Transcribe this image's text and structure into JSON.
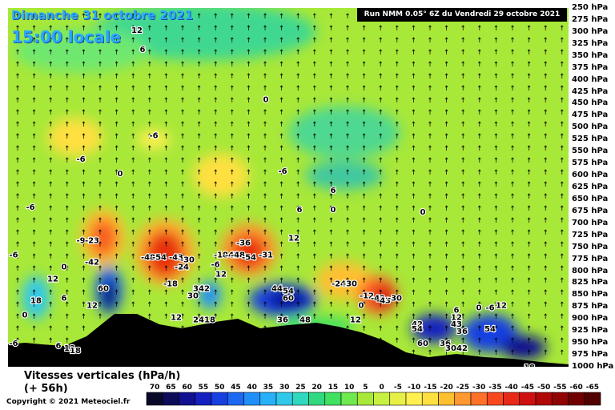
{
  "header": {
    "date": "Dimanche 31 octobre 2021",
    "local_time": "15:00 locale",
    "run_info": "Run NMM 0.05° 6Z du Vendredi 29 octobre 2021"
  },
  "footer": {
    "variable": "Vitesses verticales (hPa/h)",
    "lead": "(+ 56h)",
    "copyright": "Copyright © 2021 Meteociel.fr"
  },
  "colors": {
    "ascent_strong": "#e83010",
    "ascent_mild": "#fff050",
    "neutral": "#a8e838",
    "descent_mild": "#30d880",
    "descent_strong": "#1020c0",
    "terrain": "#000000"
  },
  "chart_data": {
    "type": "heatmap",
    "title": "Vitesses verticales (hPa/h)",
    "y_axis": {
      "quantity": "pressure level",
      "unit": "hPa",
      "ticks": [
        250,
        275,
        300,
        325,
        350,
        375,
        400,
        425,
        450,
        475,
        500,
        525,
        550,
        575,
        600,
        625,
        650,
        675,
        700,
        725,
        750,
        775,
        800,
        825,
        850,
        875,
        900,
        925,
        950,
        975,
        1000
      ],
      "tick_labels": [
        "250 hPa",
        "275 hPa",
        "300 hPa",
        "325 hPa",
        "350 hPa",
        "375 hPa",
        "400 hPa",
        "425 hPa",
        "450 hPa",
        "475 hPa",
        "500 hPa",
        "525 hPa",
        "550 hPa",
        "575 hPa",
        "600 hPa",
        "625 hPa",
        "650 hPa",
        "675 hPa",
        "700 hPa",
        "725 hPa",
        "750 hPa",
        "775 hPa",
        "800 hPa",
        "825 hPa",
        "850 hPa",
        "875 hPa",
        "900 hPa",
        "925 hPa",
        "950 hPa",
        "975 hPa",
        "1000 hPa"
      ],
      "range": [
        250,
        1000
      ]
    },
    "colorbar": {
      "values": [
        70,
        65,
        60,
        55,
        50,
        45,
        40,
        35,
        30,
        25,
        20,
        15,
        10,
        5,
        0,
        -5,
        -10,
        -15,
        -20,
        -25,
        -30,
        -35,
        -40,
        -45,
        -50,
        -55,
        -60,
        -65
      ],
      "colors": [
        "#08082a",
        "#0c0c58",
        "#101090",
        "#1420c0",
        "#1840e0",
        "#1c68f0",
        "#2090f8",
        "#28b0f8",
        "#30c8e8",
        "#30d8c0",
        "#30d880",
        "#40e060",
        "#70e850",
        "#a8e838",
        "#c8f040",
        "#e8f048",
        "#fff050",
        "#ffe040",
        "#ffc030",
        "#ff9830",
        "#ff7028",
        "#f84820",
        "#e82818",
        "#d01010",
        "#b00808",
        "#900404",
        "#700000",
        "#500000"
      ]
    },
    "contour_labels": [
      {
        "text": "12",
        "x": 0.23,
        "p": 295
      },
      {
        "text": "6",
        "x": 0.24,
        "p": 335
      },
      {
        "text": "0",
        "x": 0.46,
        "p": 440
      },
      {
        "text": "-6",
        "x": 0.26,
        "p": 515
      },
      {
        "text": "-6",
        "x": 0.13,
        "p": 565
      },
      {
        "text": "0",
        "x": 0.2,
        "p": 595
      },
      {
        "text": "-6",
        "x": 0.49,
        "p": 590
      },
      {
        "text": "6",
        "x": 0.58,
        "p": 630
      },
      {
        "text": "0",
        "x": 0.58,
        "p": 670
      },
      {
        "text": "6",
        "x": 0.52,
        "p": 670
      },
      {
        "text": "0",
        "x": 0.74,
        "p": 675
      },
      {
        "text": "-6",
        "x": 0.04,
        "p": 665
      },
      {
        "text": "-6",
        "x": 0.01,
        "p": 765
      },
      {
        "text": "12",
        "x": 0.51,
        "p": 730
      },
      {
        "text": "-9",
        "x": 0.13,
        "p": 735
      },
      {
        "text": "-23",
        "x": 0.15,
        "p": 735
      },
      {
        "text": "-42",
        "x": 0.15,
        "p": 780
      },
      {
        "text": "0",
        "x": 0.1,
        "p": 790
      },
      {
        "text": "12",
        "x": 0.08,
        "p": 815
      },
      {
        "text": "-48",
        "x": 0.25,
        "p": 770
      },
      {
        "text": "-54",
        "x": 0.27,
        "p": 770
      },
      {
        "text": "-43",
        "x": 0.3,
        "p": 770
      },
      {
        "text": "-30",
        "x": 0.32,
        "p": 775
      },
      {
        "text": "-24",
        "x": 0.31,
        "p": 790
      },
      {
        "text": "-18",
        "x": 0.29,
        "p": 825
      },
      {
        "text": "-6",
        "x": 0.37,
        "p": 785
      },
      {
        "text": "-36",
        "x": 0.42,
        "p": 740
      },
      {
        "text": "-18",
        "x": 0.38,
        "p": 765
      },
      {
        "text": "-42",
        "x": 0.4,
        "p": 765
      },
      {
        "text": "-48",
        "x": 0.41,
        "p": 765
      },
      {
        "text": "-54",
        "x": 0.43,
        "p": 770
      },
      {
        "text": "-31",
        "x": 0.46,
        "p": 765
      },
      {
        "text": "12",
        "x": 0.38,
        "p": 805
      },
      {
        "text": "60",
        "x": 0.17,
        "p": 835
      },
      {
        "text": "18",
        "x": 0.05,
        "p": 860
      },
      {
        "text": "6",
        "x": 0.1,
        "p": 855
      },
      {
        "text": "12",
        "x": 0.15,
        "p": 870
      },
      {
        "text": "0",
        "x": 0.03,
        "p": 890
      },
      {
        "text": "36",
        "x": 0.34,
        "p": 835
      },
      {
        "text": "42",
        "x": 0.35,
        "p": 835
      },
      {
        "text": "30",
        "x": 0.33,
        "p": 850
      },
      {
        "text": "12",
        "x": 0.3,
        "p": 895
      },
      {
        "text": "24",
        "x": 0.34,
        "p": 900
      },
      {
        "text": "18",
        "x": 0.36,
        "p": 900
      },
      {
        "text": "44",
        "x": 0.48,
        "p": 835
      },
      {
        "text": "54",
        "x": 0.5,
        "p": 840
      },
      {
        "text": "60",
        "x": 0.5,
        "p": 855
      },
      {
        "text": "36",
        "x": 0.49,
        "p": 900
      },
      {
        "text": "48",
        "x": 0.53,
        "p": 900
      },
      {
        "text": "-24",
        "x": 0.59,
        "p": 825
      },
      {
        "text": "-30",
        "x": 0.61,
        "p": 825
      },
      {
        "text": "-12",
        "x": 0.64,
        "p": 850
      },
      {
        "text": "-42",
        "x": 0.66,
        "p": 855
      },
      {
        "text": "-43",
        "x": 0.67,
        "p": 860
      },
      {
        "text": "-30",
        "x": 0.69,
        "p": 855
      },
      {
        "text": "0",
        "x": 0.63,
        "p": 870
      },
      {
        "text": "12",
        "x": 0.62,
        "p": 900
      },
      {
        "text": "42",
        "x": 0.73,
        "p": 910
      },
      {
        "text": "54",
        "x": 0.73,
        "p": 920
      },
      {
        "text": "60",
        "x": 0.74,
        "p": 950
      },
      {
        "text": "36",
        "x": 0.78,
        "p": 950
      },
      {
        "text": "30",
        "x": 0.79,
        "p": 960
      },
      {
        "text": "42",
        "x": 0.81,
        "p": 960
      },
      {
        "text": "6",
        "x": 0.8,
        "p": 880
      },
      {
        "text": "12",
        "x": 0.8,
        "p": 895
      },
      {
        "text": "43",
        "x": 0.8,
        "p": 910
      },
      {
        "text": "36",
        "x": 0.81,
        "p": 925
      },
      {
        "text": "0",
        "x": 0.84,
        "p": 875
      },
      {
        "text": "-6",
        "x": 0.86,
        "p": 875
      },
      {
        "text": "12",
        "x": 0.88,
        "p": 870
      },
      {
        "text": "54",
        "x": 0.86,
        "p": 920
      },
      {
        "text": "-6",
        "x": 0.01,
        "p": 950
      },
      {
        "text": "6",
        "x": 0.09,
        "p": 955
      },
      {
        "text": "12",
        "x": 0.11,
        "p": 960
      },
      {
        "text": "18",
        "x": 0.12,
        "p": 965
      },
      {
        "text": "18",
        "x": 0.93,
        "p": 1000
      }
    ]
  }
}
